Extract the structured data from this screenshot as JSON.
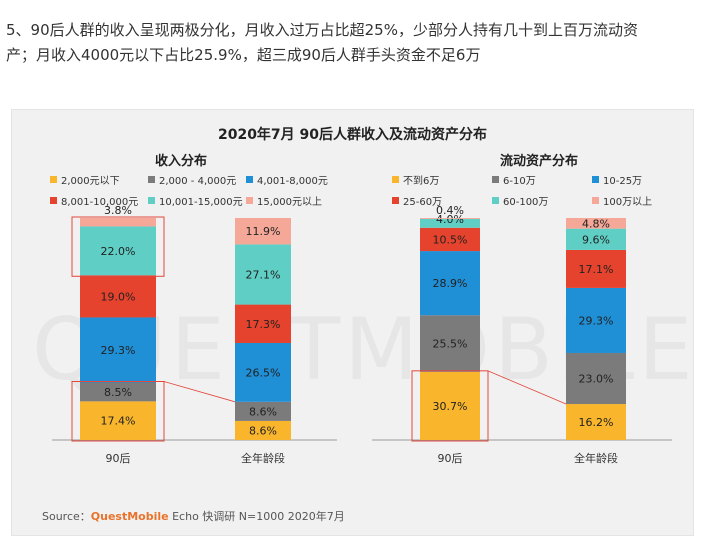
{
  "intro": {
    "line1": "5、90后人群的收入呈现两极分化，月收入过万占比超25%，少部分人持有几十到上百万流动资",
    "line2": "产；月收入4000元以下占比25.9%，超三成90后人群手头资金不足6万"
  },
  "figure": {
    "title": "2020年7月 90后人群收入及流动资产分布",
    "watermark": "QUESTMOBILE",
    "source_prefix": "Source：",
    "source_brand": "QuestMobile",
    "source_rest": " Echo 快调研 N=1000 2020年7月"
  },
  "colors": {
    "yellow": "#f9b62d",
    "gray": "#7b7b7b",
    "blue": "#1f8fd6",
    "red": "#e5432d",
    "teal": "#5fcfc6",
    "pink": "#f5a898",
    "highlight": "#e2463a"
  },
  "chart_data": [
    {
      "type": "bar",
      "stacked": true,
      "title": "收入分布",
      "categories": [
        "90后",
        "全年龄段"
      ],
      "series": [
        {
          "name": "2,000元以下",
          "color": "#f9b62d",
          "values": [
            17.4,
            8.6
          ]
        },
        {
          "name": "2,000 - 4,000元",
          "color": "#7b7b7b",
          "values": [
            8.5,
            8.6
          ]
        },
        {
          "name": "4,001-8,000元",
          "color": "#1f8fd6",
          "values": [
            29.3,
            26.5
          ]
        },
        {
          "name": "8,001-10,000元",
          "color": "#e5432d",
          "values": [
            19.0,
            17.3
          ]
        },
        {
          "name": "10,001-15,000元",
          "color": "#5fcfc6",
          "values": [
            22.0,
            27.1
          ]
        },
        {
          "name": "15,000元以上",
          "color": "#f5a898",
          "values": [
            3.8,
            11.9
          ]
        }
      ],
      "unit": "%",
      "ylim": [
        0,
        100
      ],
      "highlights": [
        {
          "category": "90后",
          "series": [
            "2,000元以下",
            "2,000 - 4,000元"
          ]
        },
        {
          "category": "90后",
          "series": [
            "10,001-15,000元",
            "15,000元以上"
          ]
        }
      ],
      "legend_position": "top"
    },
    {
      "type": "bar",
      "stacked": true,
      "title": "流动资产分布",
      "categories": [
        "90后",
        "全年龄段"
      ],
      "series": [
        {
          "name": "不到6万",
          "color": "#f9b62d",
          "values": [
            30.7,
            16.2
          ]
        },
        {
          "name": "6-10万",
          "color": "#7b7b7b",
          "values": [
            25.5,
            23.0
          ]
        },
        {
          "name": "10-25万",
          "color": "#1f8fd6",
          "values": [
            28.9,
            29.3
          ]
        },
        {
          "name": "25-60万",
          "color": "#e5432d",
          "values": [
            10.5,
            17.1
          ]
        },
        {
          "name": "60-100万",
          "color": "#5fcfc6",
          "values": [
            4.0,
            9.6
          ]
        },
        {
          "name": "100万以上",
          "color": "#f5a898",
          "values": [
            0.4,
            4.8
          ]
        }
      ],
      "unit": "%",
      "ylim": [
        0,
        100
      ],
      "highlights": [
        {
          "category": "90后",
          "series": [
            "不到6万"
          ]
        }
      ],
      "legend_position": "top"
    }
  ]
}
